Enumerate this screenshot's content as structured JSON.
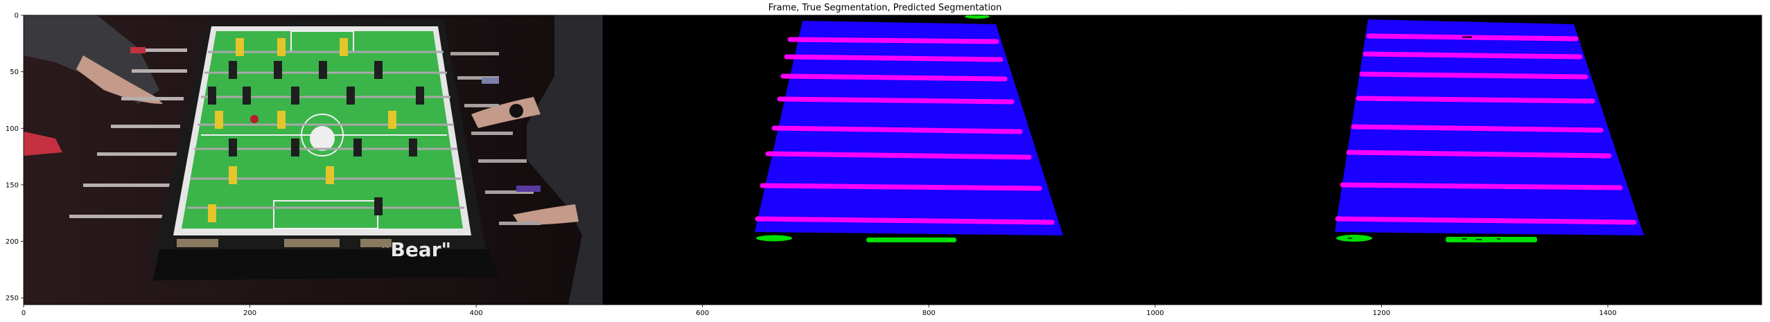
{
  "figure": {
    "title": "Frame, True Segmentation, Predicted Segmentation"
  },
  "colors": {
    "background": "#ffffff",
    "mask_background": "#000000",
    "table_class": "#1a00ff",
    "rod_class": "#ff00ff",
    "player_class": "#00e000",
    "felt_green": "#3bb44a",
    "yellow_team": "#e4c52a",
    "red_team": "#b41e2a"
  },
  "frame_image": {
    "table_logo": "\"Bear\""
  },
  "axes": {
    "x_ticks": [
      {
        "value": 0,
        "label": "0"
      },
      {
        "value": 200,
        "label": "200"
      },
      {
        "value": 400,
        "label": "400"
      },
      {
        "value": 600,
        "label": "600"
      },
      {
        "value": 800,
        "label": "800"
      },
      {
        "value": 1000,
        "label": "1000"
      },
      {
        "value": 1200,
        "label": "1200"
      },
      {
        "value": 1400,
        "label": "1400"
      }
    ],
    "y_ticks": [
      {
        "value": 0,
        "label": "0"
      },
      {
        "value": 50,
        "label": "50"
      },
      {
        "value": 100,
        "label": "100"
      },
      {
        "value": 150,
        "label": "150"
      },
      {
        "value": 200,
        "label": "200"
      },
      {
        "value": 250,
        "label": "250"
      }
    ],
    "xlim": [
      0,
      1536
    ],
    "ylim": [
      256,
      0
    ]
  }
}
